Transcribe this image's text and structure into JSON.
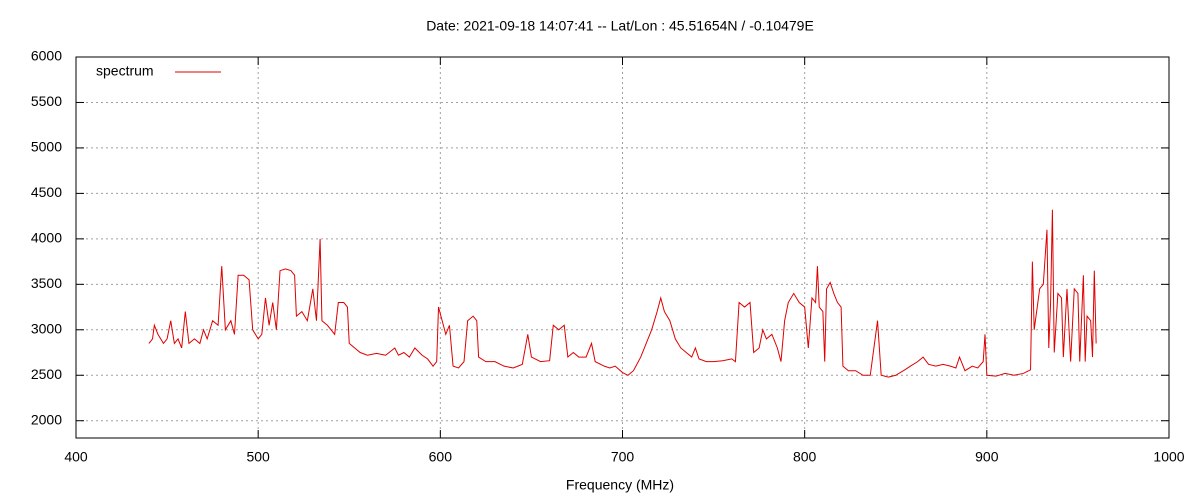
{
  "chart_data": {
    "type": "line",
    "title": "Date: 2021-09-18 14:07:41  --  Lat/Lon : 45.51654N / -0.10479E",
    "x_label": "Frequency (MHz)",
    "xlim": [
      400,
      1000
    ],
    "xticks": [
      400,
      500,
      600,
      700,
      800,
      900,
      1000
    ],
    "ylim": [
      1810,
      6000
    ],
    "yticks": [
      2000,
      2500,
      3000,
      3500,
      4000,
      4500,
      5000,
      5500,
      6000
    ],
    "grid": true,
    "legend": "top left",
    "series": [
      {
        "name": "spectrum",
        "color": "#e00000",
        "x": [
          440,
          442,
          443,
          445,
          448,
          450,
          452,
          454,
          456,
          458,
          460,
          462,
          465,
          468,
          470,
          472,
          475,
          478,
          480,
          482,
          485,
          487,
          489,
          492,
          495,
          497,
          500,
          502,
          504,
          506,
          508,
          510,
          512,
          515,
          518,
          520,
          521,
          524,
          527,
          530,
          532,
          534,
          535,
          538,
          540,
          542,
          544,
          547,
          549,
          550,
          553,
          556,
          560,
          565,
          570,
          575,
          577,
          580,
          583,
          586,
          590,
          593,
          596,
          598,
          599,
          601,
          603,
          605,
          607,
          610,
          613,
          615,
          618,
          620,
          621,
          625,
          630,
          635,
          640,
          645,
          648,
          650,
          655,
          660,
          662,
          665,
          668,
          670,
          673,
          676,
          680,
          683,
          685,
          690,
          693,
          696,
          700,
          703,
          706,
          710,
          713,
          716,
          719,
          721,
          723,
          726,
          729,
          732,
          735,
          738,
          740,
          742,
          746,
          750,
          755,
          760,
          762,
          764,
          767,
          770,
          772,
          775,
          777,
          779,
          782,
          785,
          787,
          789,
          791,
          794,
          797,
          800,
          802,
          804,
          806,
          807,
          808,
          810,
          811,
          812,
          814,
          816,
          818,
          820,
          821,
          824,
          828,
          832,
          836,
          840,
          842,
          846,
          850,
          855,
          858,
          862,
          865,
          868,
          872,
          876,
          880,
          883,
          885,
          888,
          892,
          895,
          898,
          899,
          900,
          905,
          910,
          915,
          920,
          924,
          925,
          926,
          929,
          931,
          933,
          934,
          935,
          936,
          937,
          939,
          941,
          942,
          944,
          946,
          948,
          950,
          951,
          953,
          954,
          955,
          957,
          958,
          959,
          960
        ],
        "values": [
          2850,
          2900,
          3050,
          2950,
          2850,
          2900,
          3100,
          2850,
          2900,
          2800,
          3200,
          2850,
          2900,
          2850,
          3000,
          2900,
          3100,
          3050,
          3700,
          3000,
          3100,
          2950,
          3600,
          3600,
          3550,
          3000,
          2900,
          2950,
          3350,
          3050,
          3300,
          3000,
          3650,
          3670,
          3650,
          3600,
          3150,
          3200,
          3100,
          3450,
          3100,
          4000,
          3100,
          3050,
          3000,
          2950,
          3300,
          3300,
          3250,
          2850,
          2800,
          2750,
          2720,
          2740,
          2720,
          2800,
          2720,
          2750,
          2700,
          2800,
          2720,
          2680,
          2600,
          2650,
          3250,
          3100,
          2950,
          3050,
          2600,
          2580,
          2650,
          3100,
          3150,
          3100,
          2700,
          2650,
          2650,
          2600,
          2580,
          2620,
          2950,
          2700,
          2650,
          2660,
          3050,
          3000,
          3050,
          2700,
          2750,
          2700,
          2700,
          2850,
          2650,
          2600,
          2580,
          2600,
          2530,
          2500,
          2550,
          2700,
          2850,
          3000,
          3200,
          3350,
          3200,
          3100,
          2900,
          2800,
          2750,
          2700,
          2800,
          2680,
          2650,
          2650,
          2660,
          2680,
          2650,
          3300,
          3250,
          3300,
          2750,
          2800,
          3000,
          2900,
          2950,
          2800,
          2650,
          3100,
          3300,
          3400,
          3300,
          3250,
          2800,
          3350,
          3300,
          3700,
          3250,
          3200,
          2650,
          3450,
          3520,
          3400,
          3300,
          3250,
          2600,
          2550,
          2550,
          2500,
          2500,
          3100,
          2500,
          2480,
          2500,
          2560,
          2600,
          2650,
          2700,
          2620,
          2600,
          2620,
          2600,
          2580,
          2700,
          2550,
          2600,
          2580,
          2650,
          2950,
          2500,
          2490,
          2520,
          2500,
          2520,
          2560,
          3750,
          3000,
          3450,
          3500,
          4100,
          2800,
          3300,
          4320,
          2750,
          3400,
          3350,
          2700,
          3450,
          2650,
          3450,
          3400,
          2650,
          3600,
          2650,
          3150,
          3100,
          2700,
          3650,
          2850
        ]
      }
    ]
  }
}
